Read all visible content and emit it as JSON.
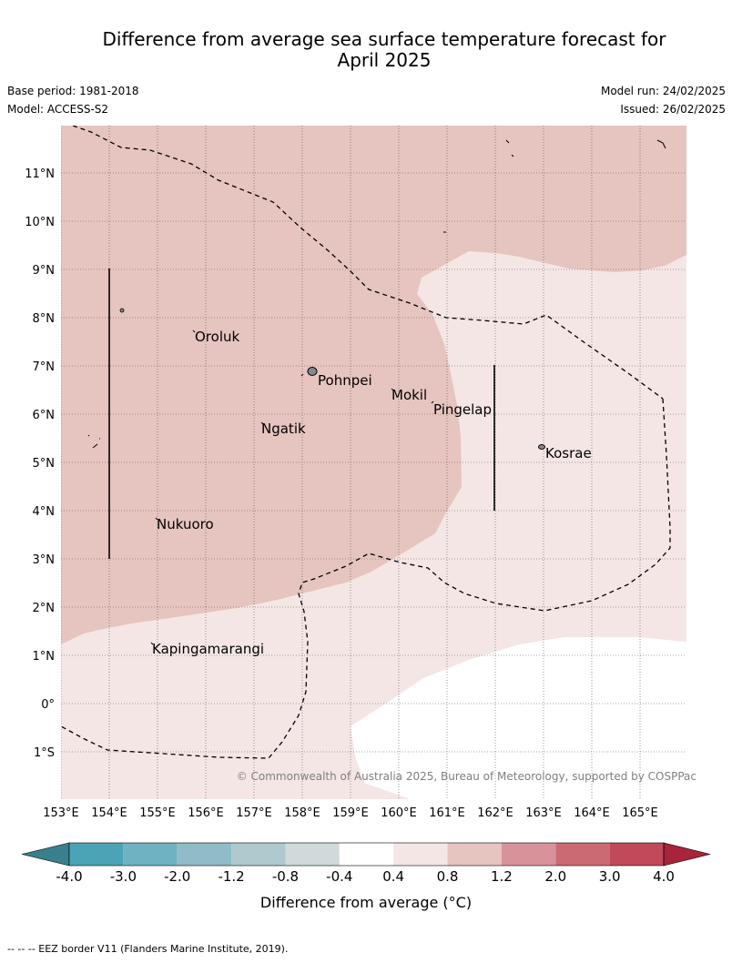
{
  "title_line1": "Difference from average sea surface temperature forecast for",
  "title_line2": "April 2025",
  "base_period": "Base period: 1981-2018",
  "model": "Model: ACCESS-S2",
  "model_run": "Model run: 24/02/2025",
  "issued": "Issued: 26/02/2025",
  "lat_labels": [
    "11°N",
    "10°N",
    "9°N",
    "8°N",
    "7°N",
    "6°N",
    "5°N",
    "4°N",
    "3°N",
    "2°N",
    "1°N",
    "0°",
    "1°S"
  ],
  "lon_labels": [
    "153°E",
    "154°E",
    "155°E",
    "156°E",
    "157°E",
    "158°E",
    "159°E",
    "160°E",
    "161°E",
    "162°E",
    "163°E",
    "164°E",
    "165°E"
  ],
  "places": {
    "oroluk": "Oroluk",
    "pohnpei": "Pohnpei",
    "mokil": "Mokil",
    "pingelap": "Pingelap",
    "ngatik": "Ngatik",
    "kosrae": "Kosrae",
    "nukuoro": "Nukuoro",
    "kapingamarangi": "Kapingamarangi"
  },
  "copyright": "© Commonwealth of Australia 2025, Bureau of Meteorology, supported by COSPPac",
  "colorbar": {
    "ticks": [
      "-4.0",
      "-3.0",
      "-2.0",
      "-1.2",
      "-0.8",
      "-0.4",
      "0.4",
      "0.8",
      "1.2",
      "2.0",
      "3.0",
      "4.0"
    ],
    "colors": {
      "below_min": "#3a7f8c",
      "neg4_neg3": "#4aa4b5",
      "neg3_neg2": "#6fb2c2",
      "neg2_neg12": "#8fbcc8",
      "neg12_neg08": "#aecacf",
      "neg08_neg04": "#d0dadb",
      "neutral": "#ffffff",
      "p04_p08": "#f4e6e5",
      "p08_p12": "#e6c4bf",
      "p12_p20": "#d8939a",
      "p20_p30": "#cc6a74",
      "p30_p40": "#c04a59",
      "above_max": "#a8243b"
    },
    "label": "Difference from average (°C)"
  },
  "footnote": "--  --  -- EEZ border V11 (Flanders Marine Institute, 2019)."
}
